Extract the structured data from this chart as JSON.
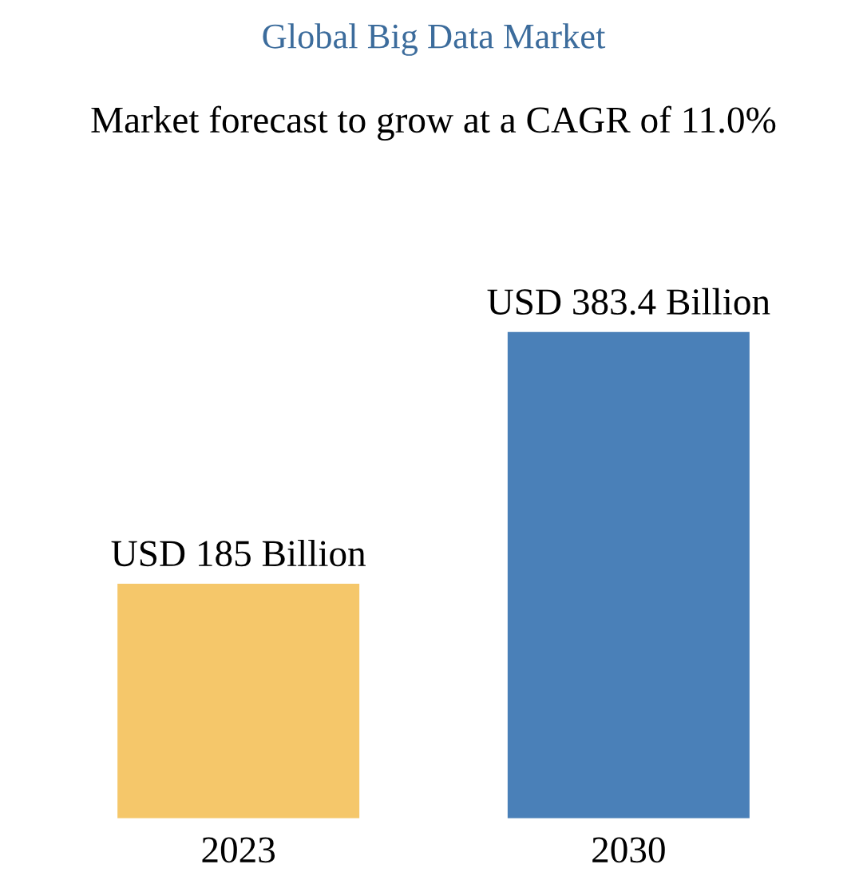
{
  "chart_data": {
    "type": "bar",
    "title": "Global Big Data Market",
    "subtitle": "Market forecast to grow at a CAGR of 11.0%",
    "categories": [
      "2023",
      "2030"
    ],
    "values": [
      185,
      383.4
    ],
    "colors": [
      "#f5c76a",
      "#4a80b8"
    ],
    "value_labels": [
      "USD 185 Billion",
      "USD 383.4 Billion"
    ]
  }
}
